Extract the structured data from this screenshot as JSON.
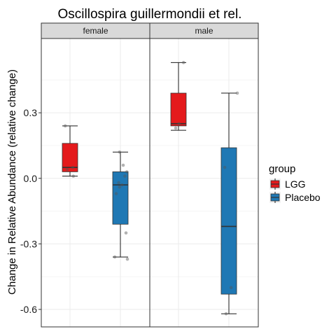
{
  "chart_data": {
    "type": "boxplot",
    "title": "Oscillospira guillermondii et rel.",
    "ylabel": "Change in Relative Abundance (relative change)",
    "xlabel": "",
    "ylim": [
      -0.68,
      0.64
    ],
    "yticks": [
      0.3,
      0.0,
      -0.3,
      -0.6
    ],
    "ytick_labels": [
      "0.3",
      "0.0",
      "-0.3",
      "-0.6"
    ],
    "grid": true,
    "legend": {
      "title": "group",
      "position": "right",
      "entries": [
        {
          "label": "LGG",
          "color": "#e41a1c"
        },
        {
          "label": "Placebo",
          "color": "#1f78b4"
        }
      ]
    },
    "panels": [
      {
        "label": "female",
        "boxes": [
          {
            "group": "LGG",
            "whisker_low": 0.01,
            "q1": 0.03,
            "median": 0.05,
            "q3": 0.16,
            "whisker_high": 0.24,
            "points": [
              [
                -0.17,
                0.24
              ],
              [
                -0.1,
                0.04
              ],
              [
                0.1,
                0.05
              ],
              [
                0.12,
                0.01
              ]
            ]
          },
          {
            "group": "Placebo",
            "whisker_low": -0.36,
            "q1": -0.21,
            "median": -0.03,
            "q3": 0.03,
            "whisker_high": 0.12,
            "points": [
              [
                -0.03,
                0.12
              ],
              [
                0.1,
                0.06
              ],
              [
                0.23,
                0.03
              ],
              [
                0.16,
                0.01
              ],
              [
                -0.15,
                -0.07
              ],
              [
                -0.06,
                -0.02
              ],
              [
                0.06,
                -0.03
              ],
              [
                -0.03,
                -0.04
              ],
              [
                0.2,
                -0.25
              ],
              [
                -0.2,
                -0.36
              ],
              [
                0.25,
                -0.37
              ]
            ]
          }
        ]
      },
      {
        "label": "male",
        "boxes": [
          {
            "group": "LGG",
            "whisker_low": 0.22,
            "q1": 0.24,
            "median": 0.25,
            "q3": 0.39,
            "whisker_high": 0.53,
            "points": [
              [
                0.18,
                0.53
              ],
              [
                0.02,
                0.25
              ],
              [
                -0.1,
                0.23
              ]
            ]
          },
          {
            "group": "Placebo",
            "whisker_low": -0.62,
            "q1": -0.53,
            "median": -0.22,
            "q3": 0.14,
            "whisker_high": 0.39,
            "points": [
              [
                0.3,
                0.39
              ],
              [
                -0.15,
                0.05
              ],
              [
                0.08,
                -0.5
              ],
              [
                -0.1,
                -0.62
              ]
            ]
          }
        ]
      }
    ]
  },
  "colors": {
    "LGG": "#e41a1c",
    "Placebo": "#1f78b4",
    "strip_fill": "#d9d9d9",
    "grid_major": "#ebebeb",
    "grid_minor": "#f5f5f5",
    "point": "#999999"
  }
}
